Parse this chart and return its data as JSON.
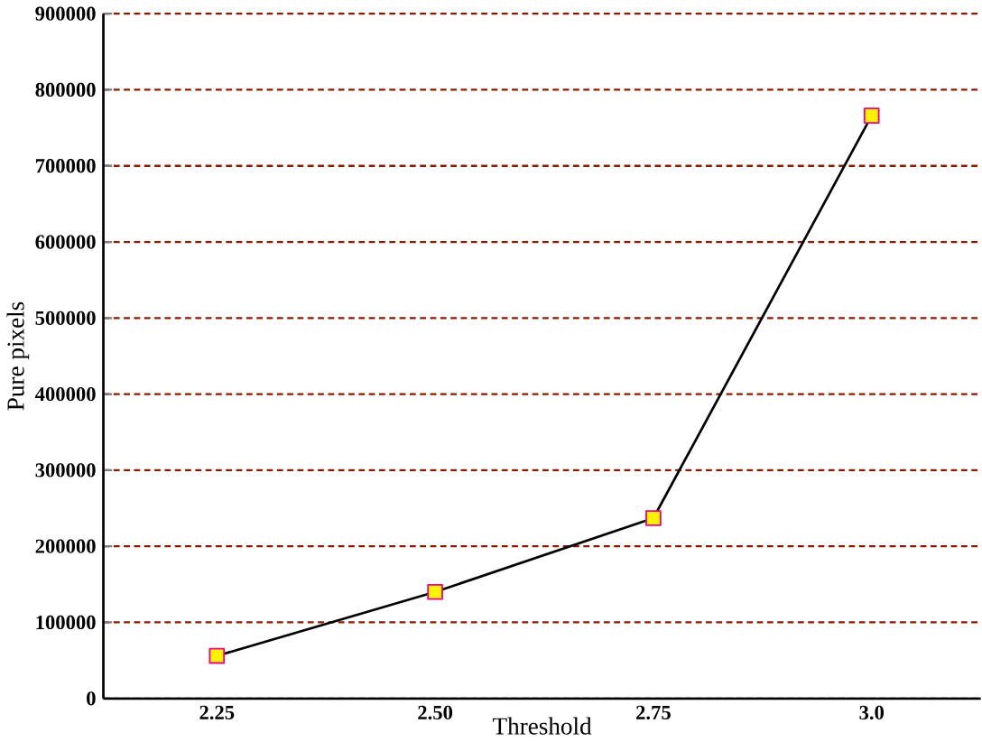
{
  "chart_data": {
    "type": "line",
    "xlabel": "Threshold",
    "ylabel": "Pure pixels",
    "categories": [
      "2.25",
      "2.50",
      "2.75",
      "3.0"
    ],
    "series": [
      {
        "color": "#000000",
        "values": [
          56000,
          140000,
          237000,
          766000
        ]
      }
    ],
    "ylim": [
      0,
      900000
    ],
    "yticks": [
      0,
      100000,
      200000,
      300000,
      400000,
      500000,
      600000,
      700000,
      800000,
      900000
    ],
    "grid": "y",
    "marker": "square",
    "line_style": "solid"
  }
}
